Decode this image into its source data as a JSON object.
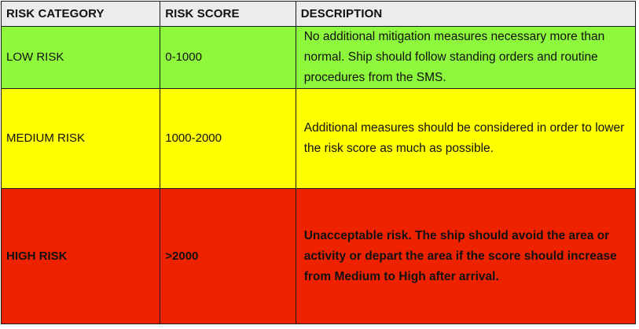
{
  "table": {
    "headers": [
      "RISK CATEGORY",
      "RISK SCORE",
      "DESCRIPTION"
    ],
    "rows": [
      {
        "category": "LOW RISK",
        "score": "0-1000",
        "description": "No additional mitigation measures necessary more than normal.  Ship should follow standing orders and routine procedures from the SMS.",
        "color": "#8ef83c"
      },
      {
        "category": "MEDIUM RISK",
        "score": "1000-2000",
        "description": "Additional measures should be considered in order to lower the risk score as much as possible.",
        "color": "#ffff00"
      },
      {
        "category": "HIGH RISK",
        "score": ">2000",
        "description": "Unacceptable risk.  The ship should avoid the area or activity or depart the area if the score should increase from Medium to High after arrival.",
        "color": "#ef2200"
      }
    ]
  }
}
